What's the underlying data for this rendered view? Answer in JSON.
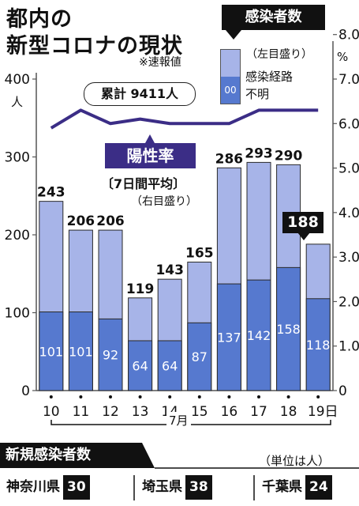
{
  "title": {
    "line1": "都内の",
    "line2": "新型コロナの現状"
  },
  "note": "※速報値",
  "legend": {
    "title": "感染者数",
    "sub": "（左目盛り）",
    "inner_label": "00",
    "line1": "感染経路",
    "line2": "不明"
  },
  "cumulative": "累計 9411人",
  "positivity": {
    "label": "陽性率",
    "sub1": "〔7日間平均〕",
    "sub2": "（右目盛り）"
  },
  "axis": {
    "left_unit": "人",
    "right_unit": "%",
    "month": "7月"
  },
  "latest_label": "188",
  "chart_data": {
    "type": "bar",
    "categories": [
      "10",
      "11",
      "12",
      "13",
      "14",
      "15",
      "16",
      "17",
      "18",
      "19日"
    ],
    "series": [
      {
        "name": "感染者数",
        "values": [
          243,
          206,
          206,
          119,
          143,
          165,
          286,
          293,
          290,
          188
        ]
      },
      {
        "name": "感染経路不明",
        "values": [
          101,
          101,
          92,
          64,
          64,
          87,
          137,
          142,
          158,
          118
        ]
      }
    ],
    "positivity_rate": {
      "values": [
        5.9,
        6.3,
        6.0,
        6.1,
        6.0,
        6.0,
        6.0,
        6.3,
        6.3,
        6.3
      ]
    },
    "yticks_left": [
      "0",
      "100",
      "200",
      "300",
      "400"
    ],
    "yticks_right": [
      "0",
      "1.0",
      "2.0",
      "3.0",
      "4.0",
      "5.0",
      "6.0",
      "7.0",
      "8.0"
    ],
    "ylim_left": [
      0,
      400
    ],
    "ylim_right": [
      0,
      8.0
    ],
    "colors": {
      "total": "#a7b4e8",
      "unknown": "#5679cf",
      "rate": "#3b2d86",
      "frame": "#555555"
    }
  },
  "new_cases": {
    "title": "新規感染者数",
    "unit": "（単位は人）",
    "prefectures": [
      {
        "name": "神奈川県",
        "value": "30"
      },
      {
        "name": "埼玉県",
        "value": "38"
      },
      {
        "name": "千葉県",
        "value": "24"
      }
    ]
  }
}
